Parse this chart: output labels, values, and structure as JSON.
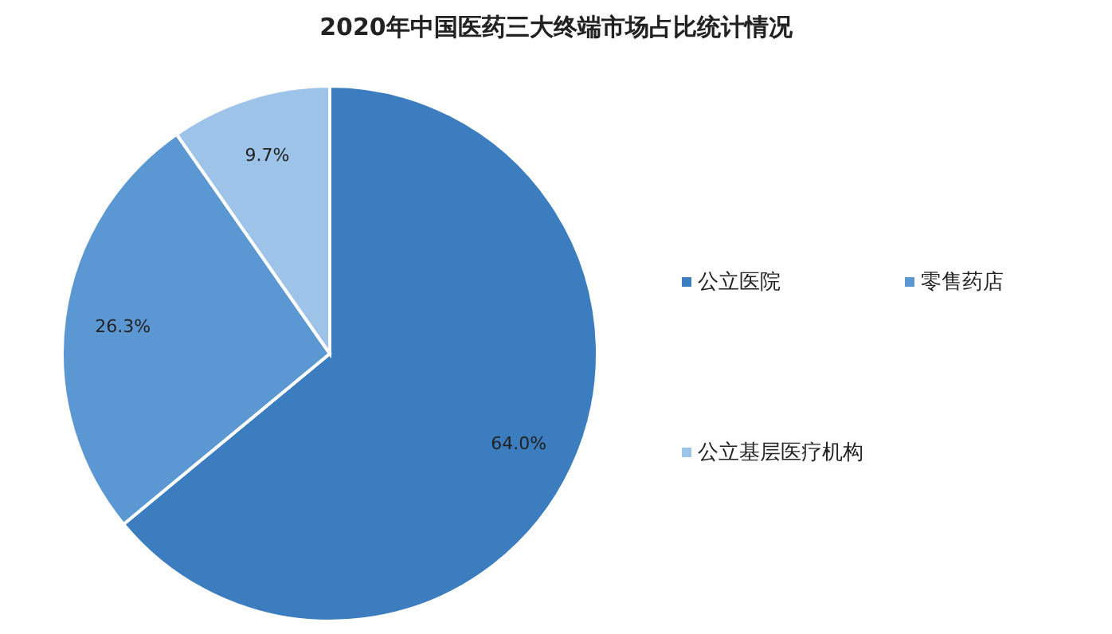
{
  "chart_data": {
    "type": "pie",
    "title": "2020年中国医药三大终端市场占比统计情况",
    "categories": [
      "公立医院",
      "零售药店",
      "公立基层医疗机构"
    ],
    "values": [
      64.0,
      26.3,
      9.7
    ],
    "value_labels": [
      "64.0%",
      "26.3%",
      "9.7%"
    ],
    "colors": [
      "#3b7dbf",
      "#5b98d3",
      "#9dc3e8"
    ],
    "legend": "right"
  }
}
